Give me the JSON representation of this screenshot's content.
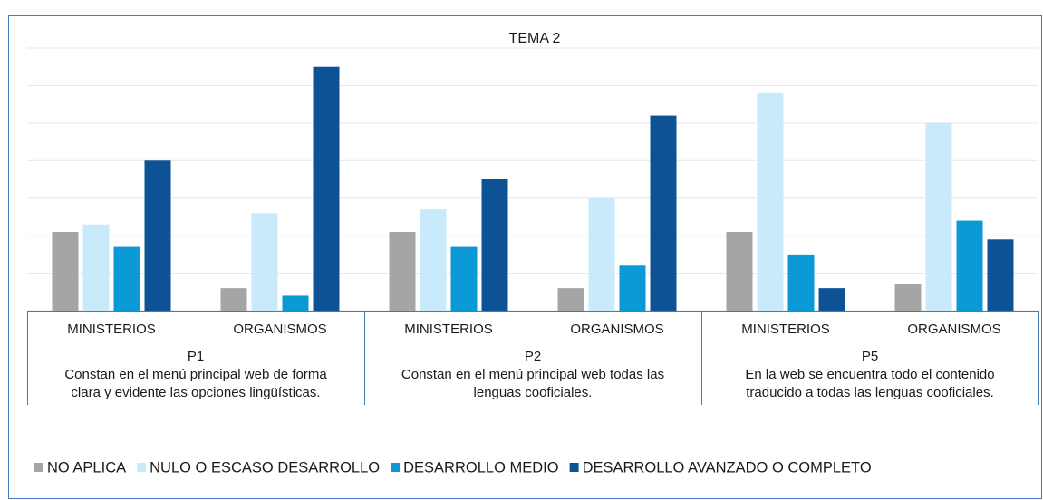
{
  "chart_data": {
    "type": "bar",
    "title": "TEMA 2",
    "categories": [
      "MINISTERIOS",
      "ORGANISMOS",
      "MINISTERIOS",
      "ORGANISMOS",
      "MINISTERIOS",
      "ORGANISMOS"
    ],
    "groups": [
      {
        "label": "P1",
        "description": [
          "Constan en el menú principal web de forma",
          "clara y evidente las opciones lingüísticas."
        ]
      },
      {
        "label": "P2",
        "description": [
          "Constan en el menú principal web  todas las",
          "lenguas cooficiales."
        ]
      },
      {
        "label": "P5",
        "description": [
          "En la web se encuentra todo el contenido",
          "traducido a todas las lenguas cooficiales."
        ]
      }
    ],
    "series": [
      {
        "name": "NO APLICA",
        "color": "#a5a5a5",
        "values": [
          2.1,
          0.6,
          2.1,
          0.6,
          2.1,
          0.7
        ]
      },
      {
        "name": "NULO O ESCASO DESARROLLO",
        "color": "#c9eafa",
        "values": [
          2.3,
          2.6,
          2.7,
          3.0,
          5.8,
          5.0
        ]
      },
      {
        "name": "DESARROLLO MEDIO",
        "color": "#0b9ad6",
        "values": [
          1.7,
          0.4,
          1.7,
          1.2,
          1.5,
          2.4
        ]
      },
      {
        "name": "DESARROLLO AVANZADO O COMPLETO",
        "color": "#0e5296",
        "values": [
          4.0,
          6.5,
          3.5,
          5.2,
          0.6,
          1.9
        ]
      }
    ],
    "ylim": [
      0,
      7
    ],
    "yticks": [
      0,
      1,
      2,
      3,
      4,
      5,
      6,
      7
    ],
    "grid": true,
    "legend": "bottom"
  }
}
